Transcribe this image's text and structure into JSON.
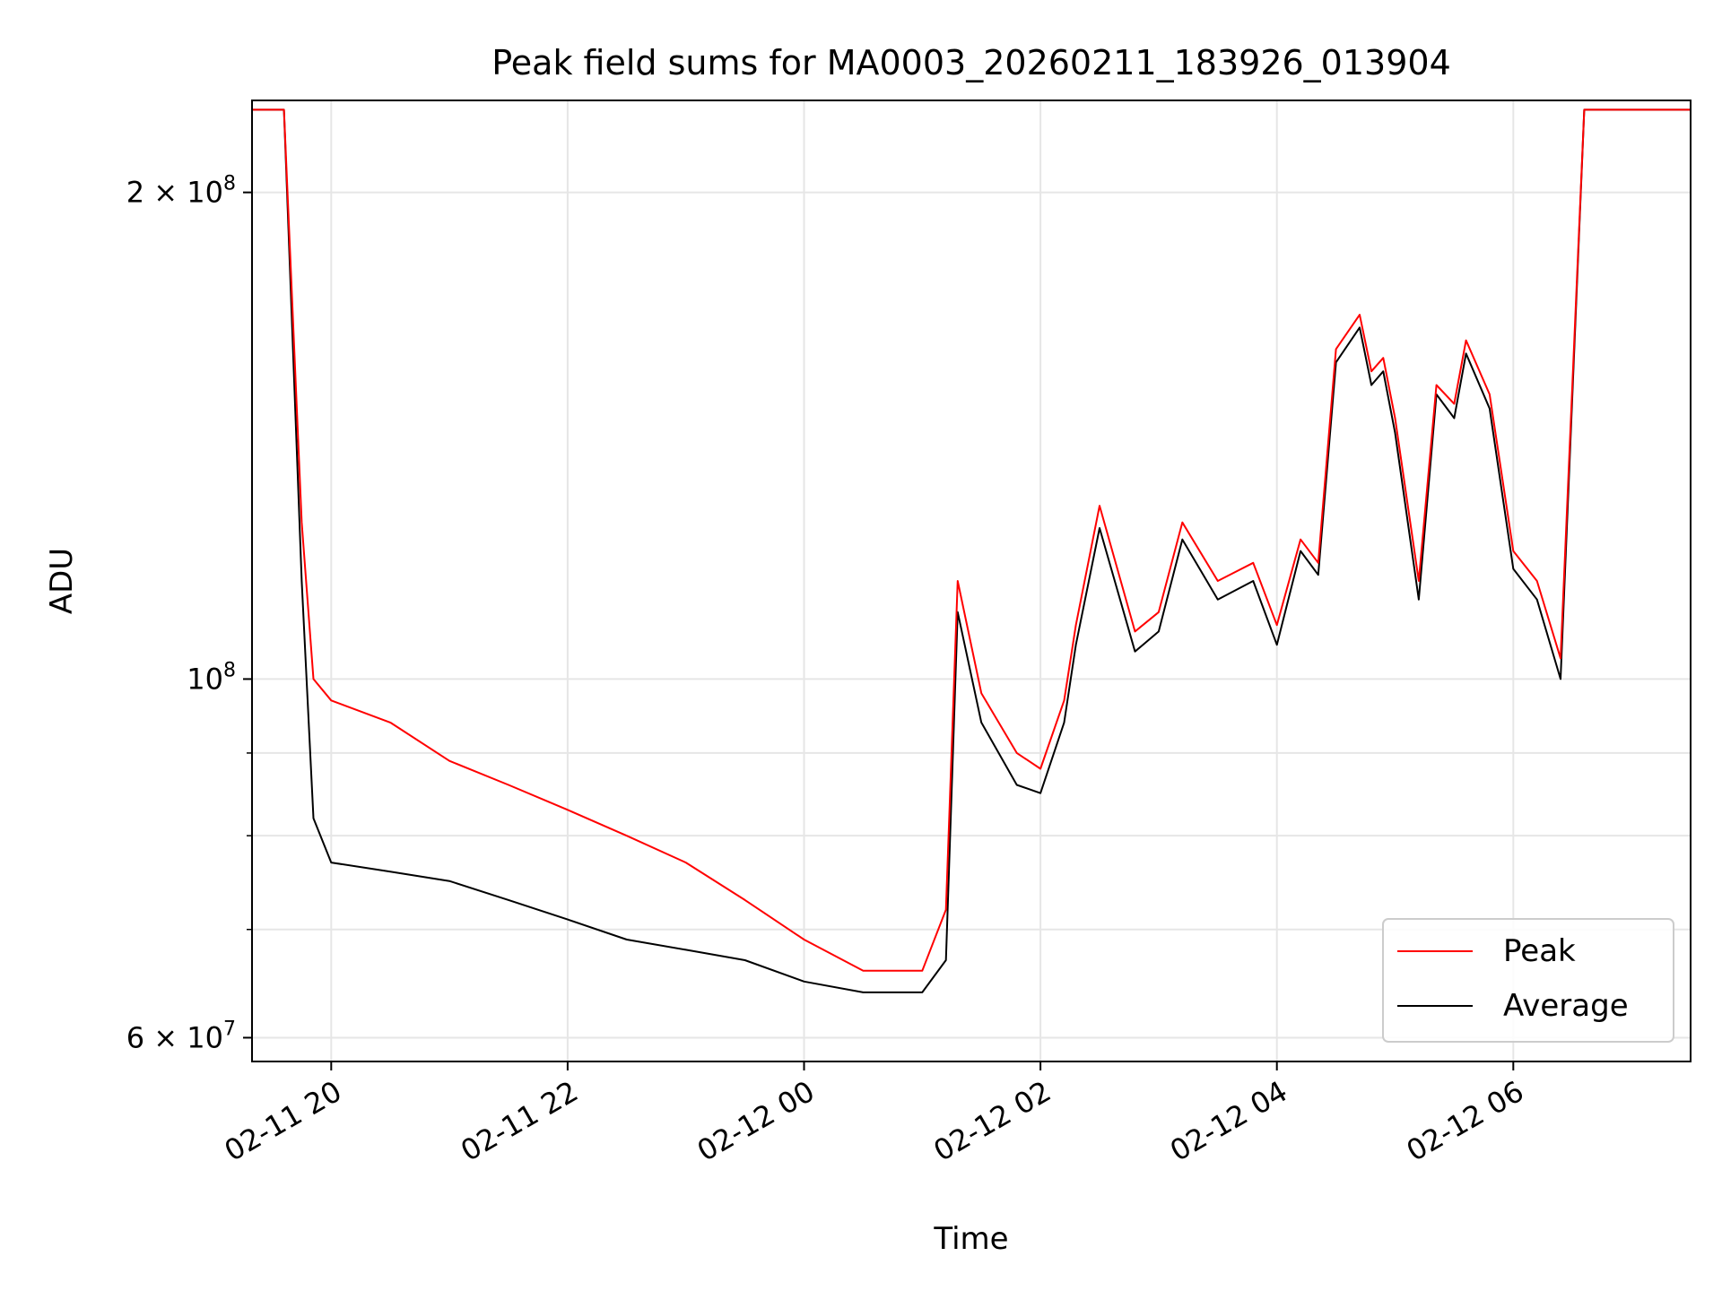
{
  "chart_data": {
    "type": "line",
    "title": "Peak field sums for MA0003_20260211_183926_013904",
    "xlabel": "Time",
    "ylabel": "ADU",
    "yscale": "log",
    "ylim": [
      58000000,
      228000000
    ],
    "xlim_hours_from_0211_1800": [
      1.33,
      13.5
    ],
    "grid": true,
    "legend_position": "lower right",
    "x_ticks": [
      {
        "hour": 2,
        "label": "02-11 20"
      },
      {
        "hour": 4,
        "label": "02-11 22"
      },
      {
        "hour": 6,
        "label": "02-12 00"
      },
      {
        "hour": 8,
        "label": "02-12 02"
      },
      {
        "hour": 10,
        "label": "02-12 04"
      },
      {
        "hour": 12,
        "label": "02-12 06"
      }
    ],
    "y_ticks": [
      {
        "value": 60000000,
        "base": "6 × 10",
        "exp": "7"
      },
      {
        "value": 100000000,
        "base": "10",
        "exp": "8"
      },
      {
        "value": 200000000,
        "base": "2 × 10",
        "exp": "8"
      }
    ],
    "y_minor_ticks": [
      70000000,
      80000000,
      90000000
    ],
    "series": [
      {
        "name": "Peak",
        "color": "#ff0000",
        "x_hours": [
          1.33,
          1.6,
          1.75,
          1.85,
          2.0,
          2.5,
          3.0,
          3.5,
          4.0,
          4.5,
          5.0,
          5.5,
          6.0,
          6.5,
          7.0,
          7.2,
          7.3,
          7.5,
          7.8,
          8.0,
          8.2,
          8.3,
          8.5,
          8.8,
          9.0,
          9.2,
          9.5,
          9.8,
          10.0,
          10.2,
          10.35,
          10.5,
          10.7,
          10.8,
          10.9,
          11.0,
          11.2,
          11.35,
          11.5,
          11.6,
          11.8,
          12.0,
          12.2,
          12.4,
          12.6,
          13.5
        ],
        "y": [
          225000000,
          225000000,
          125000000,
          100000000,
          97000000,
          94000000,
          89000000,
          86000000,
          83000000,
          80000000,
          77000000,
          73000000,
          69000000,
          66000000,
          66000000,
          72000000,
          115000000,
          98000000,
          90000000,
          88000000,
          97000000,
          108000000,
          128000000,
          107000000,
          110000000,
          125000000,
          115000000,
          118000000,
          108000000,
          122000000,
          118000000,
          160000000,
          168000000,
          155000000,
          158000000,
          145000000,
          115000000,
          152000000,
          148000000,
          162000000,
          150000000,
          120000000,
          115000000,
          103000000,
          225000000,
          225000000
        ]
      },
      {
        "name": "Average",
        "color": "#000000",
        "x_hours": [
          1.33,
          1.6,
          1.75,
          1.85,
          2.0,
          2.5,
          3.0,
          3.5,
          4.0,
          4.5,
          5.0,
          5.5,
          6.0,
          6.5,
          7.0,
          7.2,
          7.3,
          7.5,
          7.8,
          8.0,
          8.2,
          8.3,
          8.5,
          8.8,
          9.0,
          9.2,
          9.5,
          9.8,
          10.0,
          10.2,
          10.35,
          10.5,
          10.7,
          10.8,
          10.9,
          11.0,
          11.2,
          11.35,
          11.5,
          11.6,
          11.8,
          12.0,
          12.2,
          12.4,
          12.6,
          13.5
        ],
        "y": [
          225000000,
          225000000,
          115000000,
          82000000,
          77000000,
          76000000,
          75000000,
          73000000,
          71000000,
          69000000,
          68000000,
          67000000,
          65000000,
          64000000,
          64000000,
          67000000,
          110000000,
          94000000,
          86000000,
          85000000,
          94000000,
          105000000,
          124000000,
          104000000,
          107000000,
          122000000,
          112000000,
          115000000,
          105000000,
          120000000,
          116000000,
          157000000,
          165000000,
          152000000,
          155000000,
          142000000,
          112000000,
          150000000,
          145000000,
          159000000,
          147000000,
          117000000,
          112000000,
          100000000,
          225000000,
          225000000
        ]
      }
    ]
  }
}
